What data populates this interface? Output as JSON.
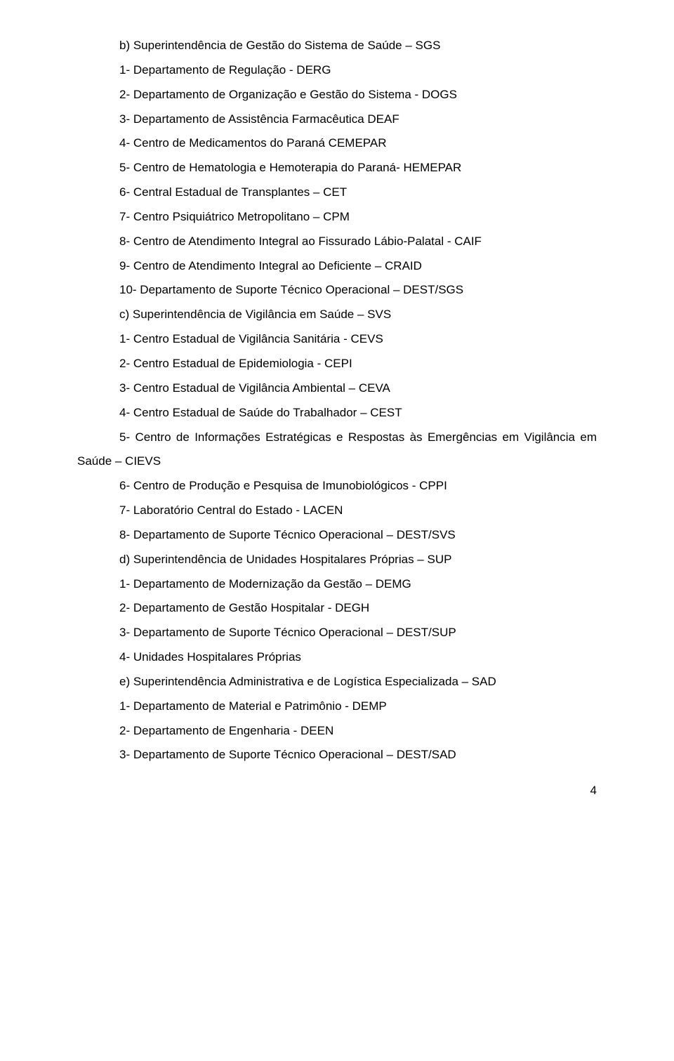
{
  "lines": [
    {
      "cls": "indent-1",
      "text": "b) Superintendência de Gestão do Sistema de Saúde – SGS"
    },
    {
      "cls": "indent-1",
      "text": "1- Departamento de Regulação - DERG"
    },
    {
      "cls": "indent-1",
      "text": "2- Departamento de Organização e Gestão do Sistema - DOGS"
    },
    {
      "cls": "indent-1",
      "text": "3- Departamento de Assistência Farmacêutica DEAF"
    },
    {
      "cls": "indent-1",
      "text": "4- Centro de Medicamentos do Paraná CEMEPAR"
    },
    {
      "cls": "indent-1",
      "text": "5- Centro de Hematologia e Hemoterapia do Paraná- HEMEPAR"
    },
    {
      "cls": "indent-1",
      "text": "6- Central Estadual de Transplantes – CET"
    },
    {
      "cls": "indent-1",
      "text": "7- Centro Psiquiátrico Metropolitano – CPM"
    },
    {
      "cls": "indent-1",
      "text": "8- Centro de Atendimento Integral ao Fissurado Lábio-Palatal - CAIF"
    },
    {
      "cls": "indent-1",
      "text": "9- Centro de Atendimento Integral ao Deficiente – CRAID"
    },
    {
      "cls": "indent-1",
      "text": "10- Departamento de Suporte Técnico Operacional – DEST/SGS"
    },
    {
      "cls": "indent-1",
      "text": "c) Superintendência de Vigilância em Saúde – SVS"
    },
    {
      "cls": "indent-1",
      "text": "1- Centro Estadual de Vigilância Sanitária - CEVS"
    },
    {
      "cls": "indent-1",
      "text": "2- Centro Estadual de Epidemiologia - CEPI"
    },
    {
      "cls": "indent-1",
      "text": "3- Centro Estadual de Vigilância Ambiental – CEVA"
    },
    {
      "cls": "indent-1",
      "text": "4- Centro Estadual de Saúde do Trabalhador – CEST"
    },
    {
      "cls": "indent-0",
      "text": "5- Centro de Informações Estratégicas e Respostas às Emergências em Vigilância em Saúde – CIEVS",
      "special": "split"
    },
    {
      "cls": "indent-1",
      "text": "6- Centro de Produção e Pesquisa de Imunobiológicos - CPPI"
    },
    {
      "cls": "indent-1",
      "text": "7- Laboratório Central do Estado - LACEN"
    },
    {
      "cls": "indent-1",
      "text": "8- Departamento de Suporte Técnico Operacional – DEST/SVS"
    },
    {
      "cls": "indent-1",
      "text": "d) Superintendência de Unidades Hospitalares Próprias – SUP"
    },
    {
      "cls": "indent-1",
      "text": "1- Departamento de Modernização da Gestão – DEMG"
    },
    {
      "cls": "indent-1",
      "text": "2- Departamento de Gestão Hospitalar - DEGH"
    },
    {
      "cls": "indent-1",
      "text": "3- Departamento de Suporte Técnico Operacional – DEST/SUP"
    },
    {
      "cls": "indent-1",
      "text": "4- Unidades Hospitalares Próprias"
    },
    {
      "cls": "indent-1",
      "text": "e) Superintendência Administrativa e de Logística Especializada – SAD"
    },
    {
      "cls": "indent-1",
      "text": "1- Departamento de Material e Patrimônio - DEMP"
    },
    {
      "cls": "indent-1",
      "text": "2- Departamento de Engenharia - DEEN"
    },
    {
      "cls": "indent-1",
      "text": "3- Departamento de Suporte Técnico Operacional – DEST/SAD"
    }
  ],
  "pageNumber": "4",
  "colors": {
    "text": "#000000",
    "background": "#ffffff"
  },
  "font": {
    "family": "Arial",
    "size_pt": 12,
    "line_height": 2.05
  }
}
